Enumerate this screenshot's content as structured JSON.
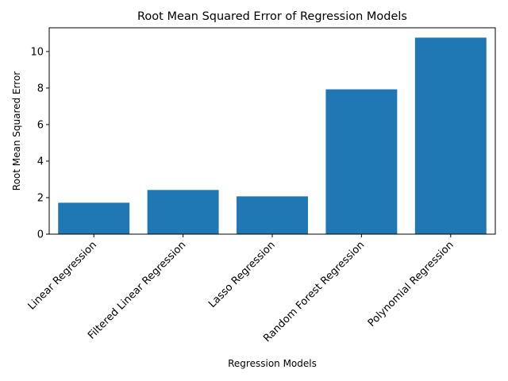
{
  "chart_data": {
    "type": "bar",
    "title": "Root Mean Squared Error of Regression Models",
    "xlabel": "Regression Models",
    "ylabel": "Root Mean Squared Error",
    "categories": [
      "Linear Regression",
      "Filtered Linear Regression",
      "Lasso Regression",
      "Random Forest Regression",
      "Polynomial Regression"
    ],
    "values": [
      1.72,
      2.42,
      2.07,
      7.93,
      10.76
    ],
    "ylim": [
      0,
      11.3
    ],
    "yticks": [
      0,
      2,
      4,
      6,
      8,
      10
    ],
    "bar_color": "#1f77b4",
    "grid": false,
    "legend": false
  }
}
